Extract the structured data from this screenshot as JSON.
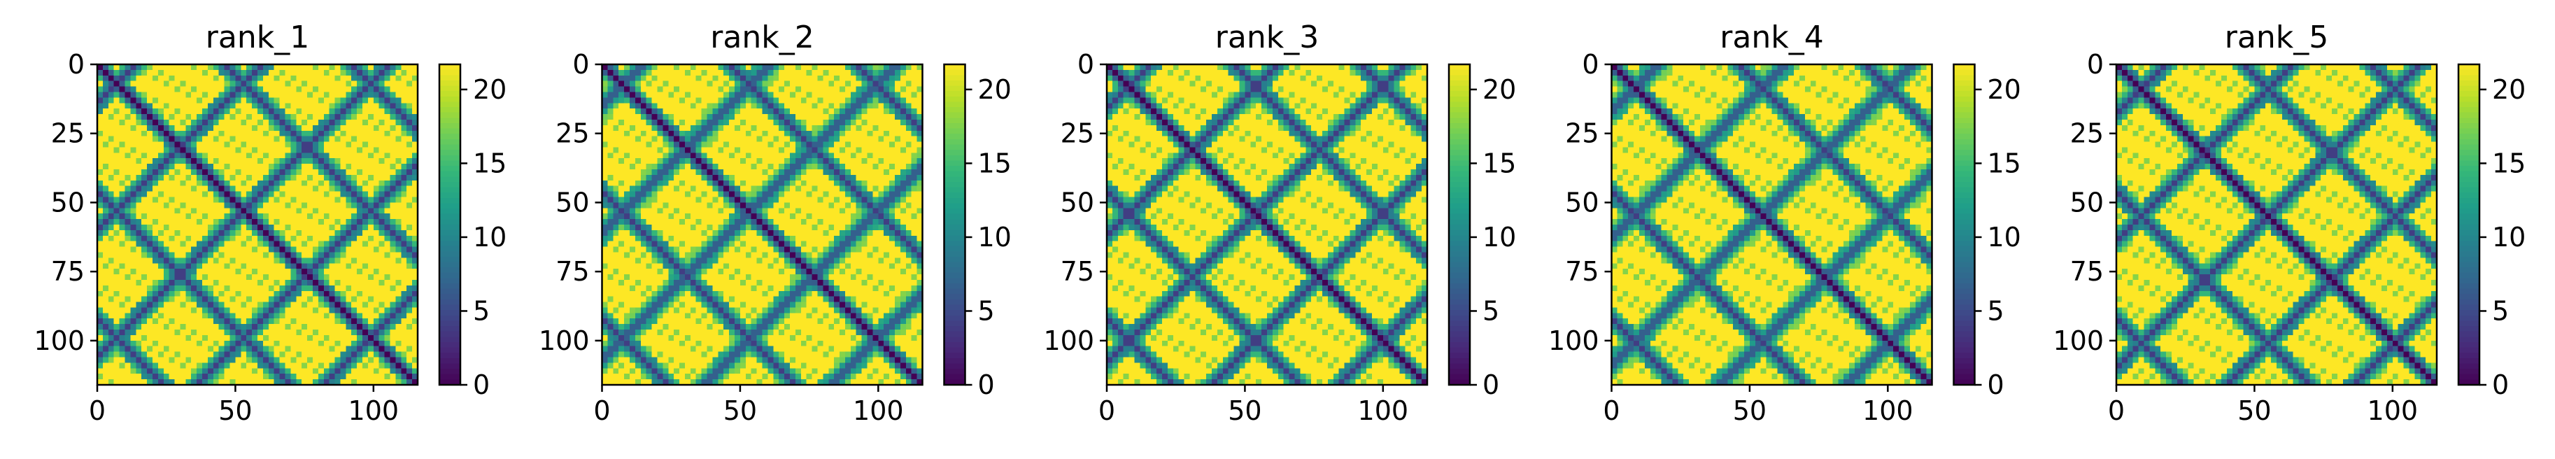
{
  "figure": {
    "panel_count": 5
  },
  "chart_data": [
    {
      "type": "heatmap",
      "title": "rank_1",
      "matrix_size": 116,
      "xlim": [
        0,
        116
      ],
      "ylim": [
        116,
        0
      ],
      "xticks": [
        0,
        50,
        100
      ],
      "yticks": [
        0,
        25,
        50,
        75,
        100
      ],
      "colorbar": {
        "colormap": "viridis",
        "range": [
          0,
          21.7
        ],
        "ticks": [
          0,
          5,
          10,
          15,
          20
        ]
      },
      "pattern": "symmetric distance-style matrix: dark main diagonal and dark diagonal bands forming a lattice of diamonds, yellow saturated values elsewhere"
    },
    {
      "type": "heatmap",
      "title": "rank_2",
      "matrix_size": 116,
      "xlim": [
        0,
        116
      ],
      "ylim": [
        116,
        0
      ],
      "xticks": [
        0,
        50,
        100
      ],
      "yticks": [
        0,
        25,
        50,
        75,
        100
      ],
      "colorbar": {
        "colormap": "viridis",
        "range": [
          0,
          21.7
        ],
        "ticks": [
          0,
          5,
          10,
          15,
          20
        ]
      },
      "pattern": "symmetric distance-style matrix: dark main diagonal and dark diagonal bands forming a lattice of diamonds, yellow saturated values elsewhere"
    },
    {
      "type": "heatmap",
      "title": "rank_3",
      "matrix_size": 116,
      "xlim": [
        0,
        116
      ],
      "ylim": [
        116,
        0
      ],
      "xticks": [
        0,
        50,
        100
      ],
      "yticks": [
        0,
        25,
        50,
        75,
        100
      ],
      "colorbar": {
        "colormap": "viridis",
        "range": [
          0,
          21.7
        ],
        "ticks": [
          0,
          5,
          10,
          15,
          20
        ]
      },
      "pattern": "symmetric distance-style matrix: dark main diagonal and dark diagonal bands forming a lattice of diamonds, yellow saturated values elsewhere"
    },
    {
      "type": "heatmap",
      "title": "rank_4",
      "matrix_size": 116,
      "xlim": [
        0,
        116
      ],
      "ylim": [
        116,
        0
      ],
      "xticks": [
        0,
        50,
        100
      ],
      "yticks": [
        0,
        25,
        50,
        75,
        100
      ],
      "colorbar": {
        "colormap": "viridis",
        "range": [
          0,
          21.7
        ],
        "ticks": [
          0,
          5,
          10,
          15,
          20
        ]
      },
      "pattern": "symmetric distance-style matrix: dark main diagonal and dark diagonal bands forming a lattice of diamonds, yellow saturated values elsewhere"
    },
    {
      "type": "heatmap",
      "title": "rank_5",
      "matrix_size": 116,
      "xlim": [
        0,
        116
      ],
      "ylim": [
        116,
        0
      ],
      "xticks": [
        0,
        50,
        100
      ],
      "yticks": [
        0,
        25,
        50,
        75,
        100
      ],
      "colorbar": {
        "colormap": "viridis",
        "range": [
          0,
          21.7
        ],
        "ticks": [
          0,
          5,
          10,
          15,
          20
        ]
      },
      "pattern": "symmetric distance-style matrix: dark main diagonal and dark diagonal bands forming a lattice of diamonds, yellow saturated values elsewhere"
    }
  ],
  "colors": {
    "viridis_stops": [
      "#440154",
      "#482878",
      "#3e4989",
      "#31688e",
      "#26828e",
      "#1f9e89",
      "#35b779",
      "#6ece58",
      "#b5de2b",
      "#fde725"
    ],
    "axis": "#000000",
    "background": "#ffffff"
  }
}
